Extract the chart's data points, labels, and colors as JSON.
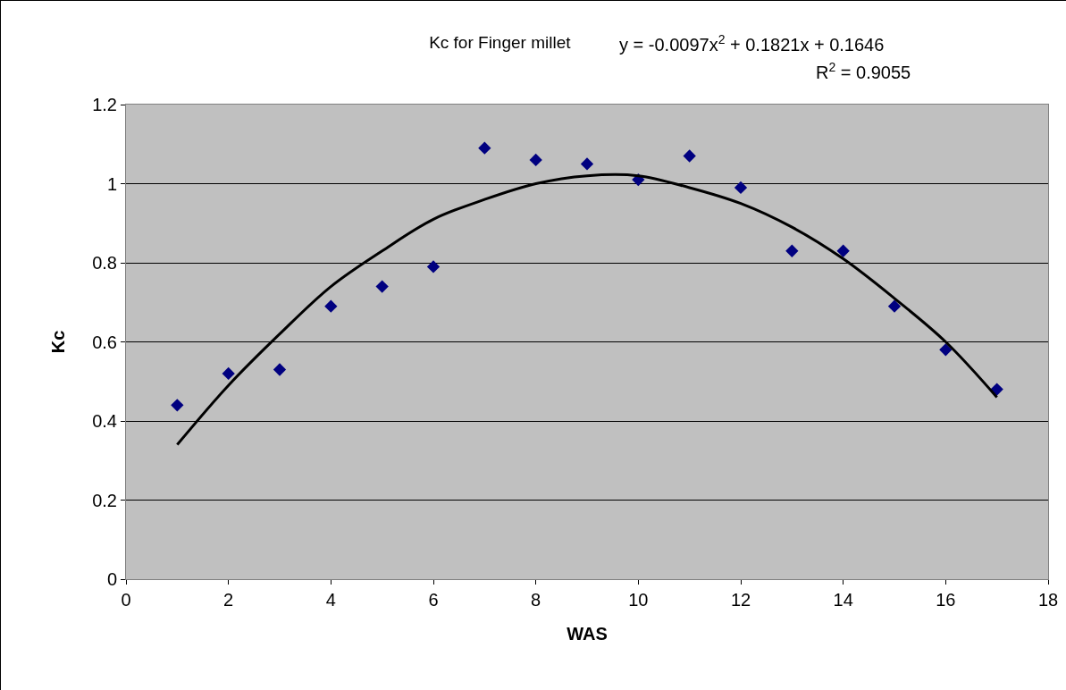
{
  "chart_data": {
    "type": "scatter",
    "title": "Kc for Finger millet",
    "xlabel": "WAS",
    "ylabel": "Kc",
    "x": [
      1,
      2,
      3,
      4,
      5,
      6,
      7,
      8,
      9,
      10,
      11,
      12,
      13,
      14,
      15,
      16,
      17
    ],
    "series": [
      {
        "color": "#000080",
        "marker": "diamond",
        "values": [
          0.44,
          0.52,
          0.53,
          0.69,
          0.74,
          0.79,
          1.09,
          1.06,
          1.05,
          1.01,
          1.07,
          0.99,
          0.83,
          0.83,
          0.69,
          0.58,
          0.48
        ]
      },
      {
        "type": "line",
        "color": "#000000",
        "marker": "none",
        "line_style": "solid",
        "x": [
          1,
          2,
          3,
          4,
          5,
          6,
          7,
          8,
          9,
          10,
          11,
          12,
          13,
          14,
          15,
          16,
          17
        ],
        "values": [
          0.34,
          0.49,
          0.62,
          0.74,
          0.83,
          0.91,
          0.96,
          1.0,
          1.02,
          1.02,
          0.99,
          0.95,
          0.89,
          0.81,
          0.71,
          0.6,
          0.46
        ]
      }
    ],
    "xlim": [
      0,
      18
    ],
    "xticks": [
      0,
      2,
      4,
      6,
      8,
      10,
      12,
      14,
      16,
      18
    ],
    "ylim": [
      0,
      1.2
    ],
    "yticks": [
      0,
      0.2,
      0.4,
      0.6,
      0.8,
      1,
      1.2
    ],
    "grid": "y",
    "annotations": [
      "y = -0.0097x$^{2}$ + 0.1821x + 0.1646",
      "R$^{2}$ = 0.9055"
    ]
  }
}
